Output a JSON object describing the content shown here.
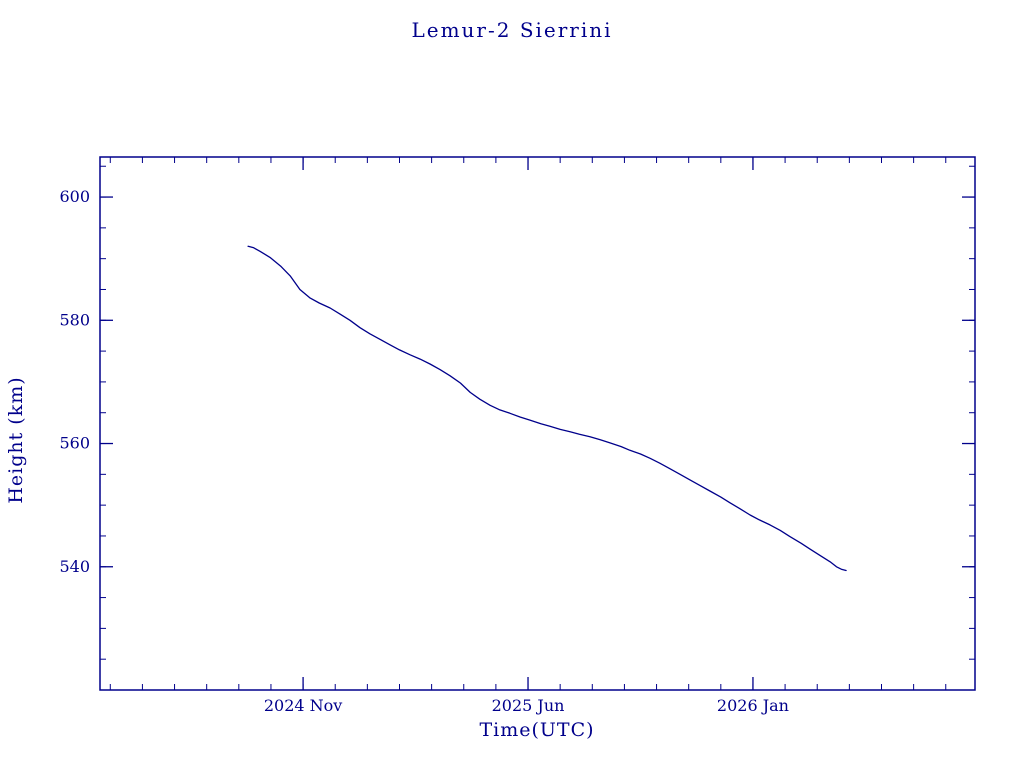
{
  "chart_data": {
    "type": "line",
    "title": "Lemur-2 Sierrini",
    "xlabel": "Time(UTC)",
    "ylabel": "Height (km)",
    "line_color": "#00008b",
    "axis_color": "#00008b",
    "grid": false,
    "legend": "none",
    "x_unit": "months since 2024-11-01",
    "xlim": [
      -6.32,
      20.91
    ],
    "ylim": [
      520,
      606.5
    ],
    "x_ticks": [
      {
        "pos": 0,
        "label": "2024 Nov"
      },
      {
        "pos": 7,
        "label": "2025 Jun"
      },
      {
        "pos": 14,
        "label": "2026 Jan"
      }
    ],
    "x_minor_step": 1,
    "y_ticks": [
      {
        "pos": 540,
        "label": "540"
      },
      {
        "pos": 560,
        "label": "560"
      },
      {
        "pos": 580,
        "label": "580"
      },
      {
        "pos": 600,
        "label": "600"
      }
    ],
    "y_minor_step": 5,
    "series": [
      {
        "name": "height",
        "x": [
          -1.71,
          -1.55,
          -1.34,
          -1.03,
          -0.7,
          -0.4,
          -0.1,
          0.22,
          0.5,
          0.84,
          1.15,
          1.46,
          1.77,
          2.08,
          2.4,
          2.71,
          3.0,
          3.33,
          3.64,
          3.95,
          4.26,
          4.57,
          4.9,
          5.2,
          5.5,
          5.82,
          6.1,
          6.44,
          6.75,
          7.06,
          7.4,
          7.68,
          8.0,
          8.31,
          8.6,
          8.93,
          9.25,
          9.55,
          9.9,
          10.17,
          10.5,
          10.8,
          11.1,
          11.42,
          11.73,
          12.04,
          12.35,
          12.66,
          13.0,
          13.28,
          13.6,
          13.91,
          14.2,
          14.53,
          14.85,
          15.15,
          15.5,
          15.77,
          16.1,
          16.4,
          16.6,
          16.75,
          16.9
        ],
        "y": [
          592.0,
          591.8,
          591.2,
          590.2,
          588.8,
          587.2,
          585.0,
          583.6,
          582.8,
          582.0,
          581.0,
          580.0,
          578.8,
          577.8,
          576.9,
          576.0,
          575.2,
          574.4,
          573.7,
          572.9,
          572.0,
          571.0,
          569.8,
          568.3,
          567.2,
          566.2,
          565.5,
          564.9,
          564.3,
          563.8,
          563.2,
          562.8,
          562.3,
          561.9,
          561.5,
          561.1,
          560.6,
          560.1,
          559.5,
          558.9,
          558.3,
          557.6,
          556.8,
          555.9,
          555.0,
          554.1,
          553.2,
          552.3,
          551.3,
          550.4,
          549.4,
          548.4,
          547.6,
          546.8,
          545.9,
          544.9,
          543.8,
          542.9,
          541.8,
          540.8,
          540.0,
          539.6,
          539.4
        ]
      }
    ]
  }
}
